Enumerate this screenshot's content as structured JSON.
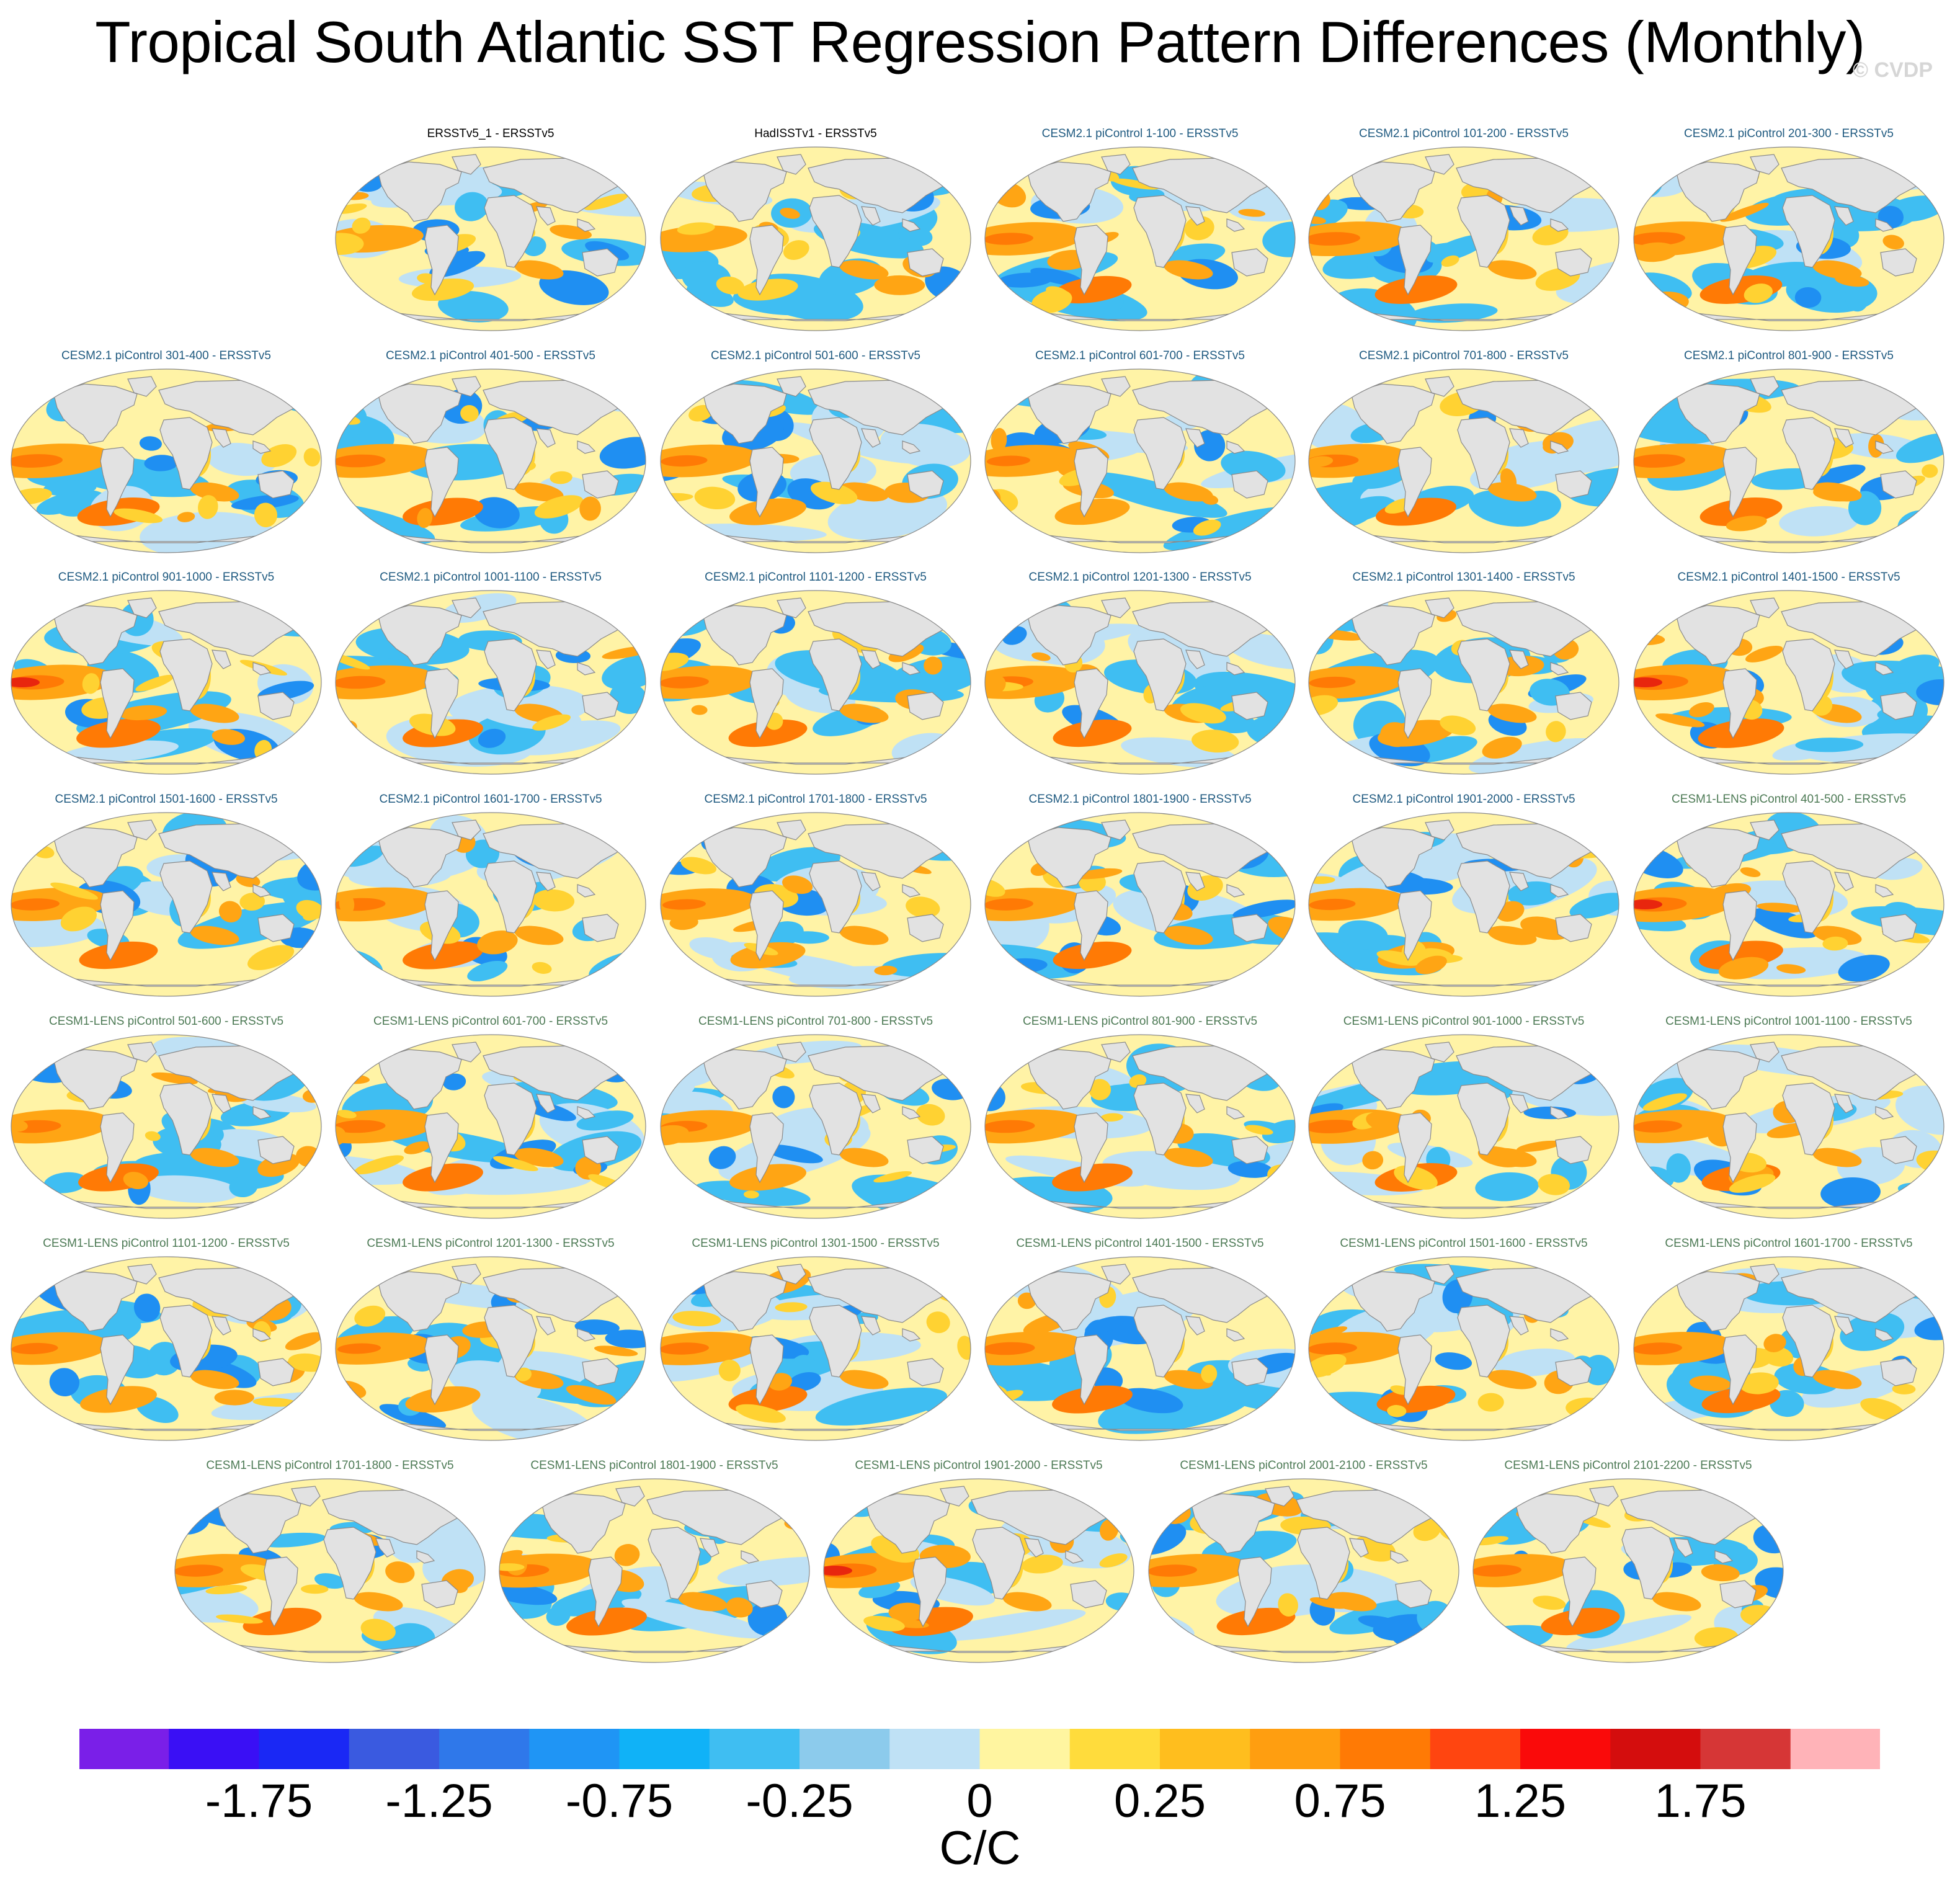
{
  "title": "Tropical South Atlantic SST Regression Pattern Differences (Monthly)",
  "watermark": "© CVDP",
  "panels": [
    {
      "title": "ERSSTv5_1 - ERSSTv5",
      "group": "obs",
      "intensity": 0.35
    },
    {
      "title": "HadISSTv1 - ERSSTv5",
      "group": "obs",
      "intensity": 0.3
    },
    {
      "title": "CESM2.1 piControl 1-100 - ERSSTv5",
      "group": "cesm2",
      "intensity": 0.8
    },
    {
      "title": "CESM2.1 piControl 101-200 - ERSSTv5",
      "group": "cesm2",
      "intensity": 0.9
    },
    {
      "title": "CESM2.1 piControl 201-300 - ERSSTv5",
      "group": "cesm2",
      "intensity": 0.9
    },
    {
      "title": "CESM2.1 piControl 301-400 - ERSSTv5",
      "group": "cesm2",
      "intensity": 0.9
    },
    {
      "title": "CESM2.1 piControl 401-500 - ERSSTv5",
      "group": "cesm2",
      "intensity": 0.85
    },
    {
      "title": "CESM2.1 piControl 501-600 - ERSSTv5",
      "group": "cesm2",
      "intensity": 0.75
    },
    {
      "title": "CESM2.1 piControl 601-700 - ERSSTv5",
      "group": "cesm2",
      "intensity": 0.7
    },
    {
      "title": "CESM2.1 piControl 701-800 - ERSSTv5",
      "group": "cesm2",
      "intensity": 0.85
    },
    {
      "title": "CESM2.1 piControl 801-900 - ERSSTv5",
      "group": "cesm2",
      "intensity": 0.9
    },
    {
      "title": "CESM2.1 piControl 901-1000 - ERSSTv5",
      "group": "cesm2",
      "intensity": 0.95
    },
    {
      "title": "CESM2.1 piControl 1001-1100 - ERSSTv5",
      "group": "cesm2",
      "intensity": 0.85
    },
    {
      "title": "CESM2.1 piControl 1101-1200 - ERSSTv5",
      "group": "cesm2",
      "intensity": 0.8
    },
    {
      "title": "CESM2.1 piControl 1201-1300 - ERSSTv5",
      "group": "cesm2",
      "intensity": 0.8
    },
    {
      "title": "CESM2.1 piControl 1301-1400 - ERSSTv5",
      "group": "cesm2",
      "intensity": 0.75
    },
    {
      "title": "CESM2.1 piControl 1401-1500 - ERSSTv5",
      "group": "cesm2",
      "intensity": 1.0
    },
    {
      "title": "CESM2.1 piControl 1501-1600 - ERSSTv5",
      "group": "cesm2",
      "intensity": 0.8
    },
    {
      "title": "CESM2.1 piControl 1601-1700 - ERSSTv5",
      "group": "cesm2",
      "intensity": 0.85
    },
    {
      "title": "CESM2.1 piControl 1701-1800 - ERSSTv5",
      "group": "cesm2",
      "intensity": 0.7
    },
    {
      "title": "CESM2.1 piControl 1801-1900 - ERSSTv5",
      "group": "cesm2",
      "intensity": 0.8
    },
    {
      "title": "CESM2.1 piControl 1901-2000 - ERSSTv5",
      "group": "cesm2",
      "intensity": 0.75
    },
    {
      "title": "CESM1-LENS piControl 401-500 - ERSSTv5",
      "group": "cesm1",
      "intensity": 0.95
    },
    {
      "title": "CESM1-LENS piControl 501-600 - ERSSTv5",
      "group": "cesm1",
      "intensity": 0.85
    },
    {
      "title": "CESM1-LENS piControl 601-700 - ERSSTv5",
      "group": "cesm1",
      "intensity": 0.85
    },
    {
      "title": "CESM1-LENS piControl 701-800 - ERSSTv5",
      "group": "cesm1",
      "intensity": 0.75
    },
    {
      "title": "CESM1-LENS piControl 801-900 - ERSSTv5",
      "group": "cesm1",
      "intensity": 0.85
    },
    {
      "title": "CESM1-LENS piControl 901-1000 - ERSSTv5",
      "group": "cesm1",
      "intensity": 0.9
    },
    {
      "title": "CESM1-LENS piControl 1001-1100 - ERSSTv5",
      "group": "cesm1",
      "intensity": 0.8
    },
    {
      "title": "CESM1-LENS piControl 1101-1200 - ERSSTv5",
      "group": "cesm1",
      "intensity": 0.75
    },
    {
      "title": "CESM1-LENS piControl 1201-1300 - ERSSTv5",
      "group": "cesm1",
      "intensity": 0.7
    },
    {
      "title": "CESM1-LENS piControl 1301-1500 - ERSSTv5",
      "group": "cesm1",
      "intensity": 0.8
    },
    {
      "title": "CESM1-LENS piControl 1401-1500 - ERSSTv5",
      "group": "cesm1",
      "intensity": 0.85
    },
    {
      "title": "CESM1-LENS piControl 1501-1600 - ERSSTv5",
      "group": "cesm1",
      "intensity": 0.8
    },
    {
      "title": "CESM1-LENS piControl 1601-1700 - ERSSTv5",
      "group": "cesm1",
      "intensity": 0.8
    },
    {
      "title": "CESM1-LENS piControl 1701-1800 - ERSSTv5",
      "group": "cesm1",
      "intensity": 0.8
    },
    {
      "title": "CESM1-LENS piControl 1801-1900 - ERSSTv5",
      "group": "cesm1",
      "intensity": 0.85
    },
    {
      "title": "CESM1-LENS piControl 1901-2000 - ERSSTv5",
      "group": "cesm1",
      "intensity": 0.95
    },
    {
      "title": "CESM1-LENS piControl 2001-2100 - ERSSTv5",
      "group": "cesm1",
      "intensity": 0.8
    },
    {
      "title": "CESM1-LENS piControl 2101-2200 - ERSSTv5",
      "group": "cesm1",
      "intensity": 0.8
    }
  ],
  "colorbar": {
    "colors": [
      "#7a1fe8",
      "#3a0ff5",
      "#1a28f5",
      "#3a5ae0",
      "#2f78ea",
      "#1f95f5",
      "#10b2f7",
      "#3fbef2",
      "#8ccbec",
      "#bfe1f5",
      "#fff5a0",
      "#ffdc3c",
      "#ffbe1e",
      "#ff9e10",
      "#ff7a05",
      "#ff4510",
      "#fa0a0a",
      "#d40d0d",
      "#d63636",
      "#ffb3b8"
    ],
    "labels": [
      "-1.75",
      "-1.25",
      "-0.75",
      "-0.25",
      "0",
      "0.25",
      "0.75",
      "1.25",
      "1.75"
    ],
    "label_boundary_index": [
      2,
      4,
      6,
      8,
      10,
      12,
      14,
      16,
      18
    ],
    "units": "C/C"
  },
  "map_colors": {
    "land": "#e2e2e2",
    "coast": "#8a8a8a",
    "ocean_base": "#fff3a6",
    "neg_light": "#bfe1f5",
    "neg_mid": "#3fbef2",
    "neg_strong": "#1f8ff2",
    "neg_deep": "#3a28e0",
    "pos_mid": "#ffd232",
    "pos_strong": "#ffa514",
    "pos_deep": "#ff7a05",
    "pos_max": "#e8260e",
    "obs_title": "#000000",
    "cesm2_title": "#1f5a80",
    "cesm1_title": "#4d7a55"
  }
}
